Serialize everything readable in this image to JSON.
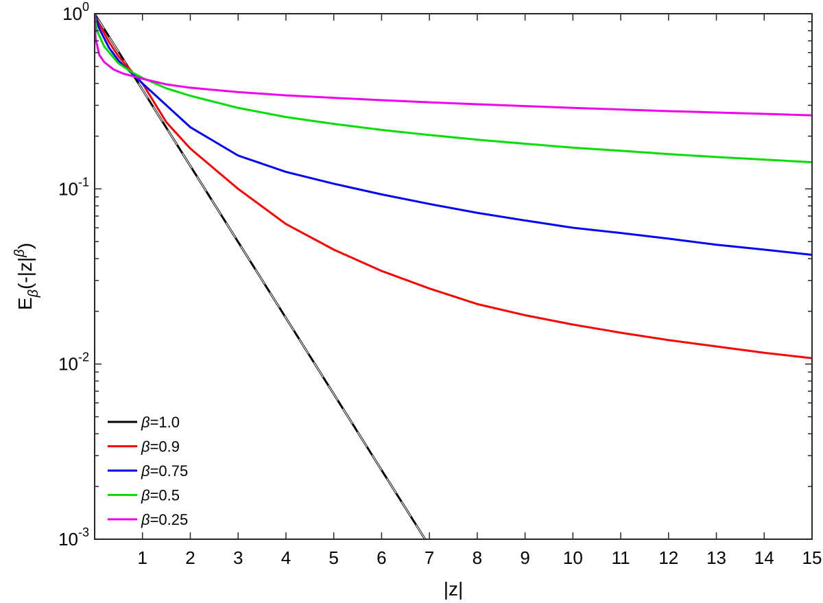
{
  "chart_data": {
    "type": "line",
    "xlabel": "|z|",
    "ylabel_main": "E",
    "ylabel_sub": "β",
    "ylabel_paren_open": "(-|z|",
    "ylabel_sup": "β",
    "ylabel_paren_close": ")",
    "xscale": "linear",
    "yscale": "log",
    "xlim": [
      0,
      15
    ],
    "ylim": [
      0.001,
      1
    ],
    "x_ticks": [
      1,
      2,
      3,
      4,
      5,
      6,
      7,
      8,
      9,
      10,
      11,
      12,
      13,
      14,
      15
    ],
    "x_tick_labels": [
      "1",
      "2",
      "3",
      "4",
      "5",
      "6",
      "7",
      "8",
      "9",
      "10",
      "11",
      "12",
      "13",
      "14",
      "15"
    ],
    "y_ticks": [
      1,
      0.1,
      0.01,
      0.001
    ],
    "y_tick_labels": [
      {
        "base": "10",
        "exp": "0"
      },
      {
        "base": "10",
        "exp": "-1"
      },
      {
        "base": "10",
        "exp": "-2"
      },
      {
        "base": "10",
        "exp": "-3"
      }
    ],
    "grid": false,
    "legend_position": "bottom-left",
    "series": [
      {
        "name": "β=1.0",
        "legend_symbol": "β",
        "legend_value": "=1.0",
        "color": "#000000",
        "dashed_overlay": true,
        "x": [
          0,
          1,
          2,
          3,
          4,
          5,
          6,
          6.91
        ],
        "y": [
          1.0,
          0.3679,
          0.1353,
          0.04979,
          0.01832,
          0.006738,
          0.002479,
          0.001
        ]
      },
      {
        "name": "β=0.9",
        "legend_symbol": "β",
        "legend_value": "=0.9",
        "color": "#ff0000",
        "dashed_overlay": false,
        "x": [
          0,
          0.1,
          0.3,
          0.5,
          0.8,
          1.0,
          1.5,
          2,
          3,
          4,
          5,
          6,
          7,
          8,
          9,
          10,
          11,
          12,
          13,
          14,
          15
        ],
        "y": [
          1.0,
          0.87,
          0.69,
          0.57,
          0.46,
          0.4,
          0.24,
          0.17,
          0.1,
          0.063,
          0.045,
          0.034,
          0.027,
          0.022,
          0.019,
          0.0168,
          0.0151,
          0.0137,
          0.0126,
          0.0116,
          0.0108
        ]
      },
      {
        "name": "β=0.75",
        "legend_symbol": "β",
        "legend_value": "=0.75",
        "color": "#0000ff",
        "dashed_overlay": false,
        "x": [
          0,
          0.1,
          0.3,
          0.5,
          0.8,
          1.0,
          1.5,
          2,
          3,
          4,
          5,
          6,
          7,
          8,
          9,
          10,
          11,
          12,
          13,
          14,
          15
        ],
        "y": [
          1.0,
          0.82,
          0.64,
          0.54,
          0.45,
          0.4,
          0.3,
          0.225,
          0.155,
          0.125,
          0.107,
          0.093,
          0.082,
          0.073,
          0.066,
          0.06,
          0.056,
          0.052,
          0.048,
          0.045,
          0.042
        ]
      },
      {
        "name": "β=0.5",
        "legend_symbol": "β",
        "legend_value": "=0.5",
        "color": "#00dd00",
        "dashed_overlay": false,
        "x": [
          0,
          0.05,
          0.2,
          0.5,
          0.8,
          1.0,
          1.5,
          2,
          3,
          4,
          5,
          6,
          7,
          8,
          9,
          10,
          11,
          12,
          13,
          14,
          15
        ],
        "y": [
          1.0,
          0.8,
          0.65,
          0.52,
          0.46,
          0.43,
          0.375,
          0.34,
          0.29,
          0.257,
          0.235,
          0.217,
          0.203,
          0.191,
          0.181,
          0.172,
          0.165,
          0.158,
          0.152,
          0.147,
          0.142
        ]
      },
      {
        "name": "β=0.25",
        "legend_symbol": "β",
        "legend_value": "=0.25",
        "color": "#ee00ee",
        "dashed_overlay": false,
        "x": [
          0,
          0.02,
          0.1,
          0.2,
          0.4,
          0.6,
          0.8,
          1.0,
          1.5,
          2,
          3,
          4,
          5,
          6,
          7,
          8,
          9,
          10,
          11,
          12,
          13,
          14,
          15
        ],
        "y": [
          1.0,
          0.72,
          0.58,
          0.53,
          0.48,
          0.455,
          0.44,
          0.425,
          0.395,
          0.378,
          0.357,
          0.342,
          0.331,
          0.321,
          0.312,
          0.304,
          0.297,
          0.29,
          0.284,
          0.278,
          0.273,
          0.268,
          0.263
        ]
      }
    ]
  }
}
